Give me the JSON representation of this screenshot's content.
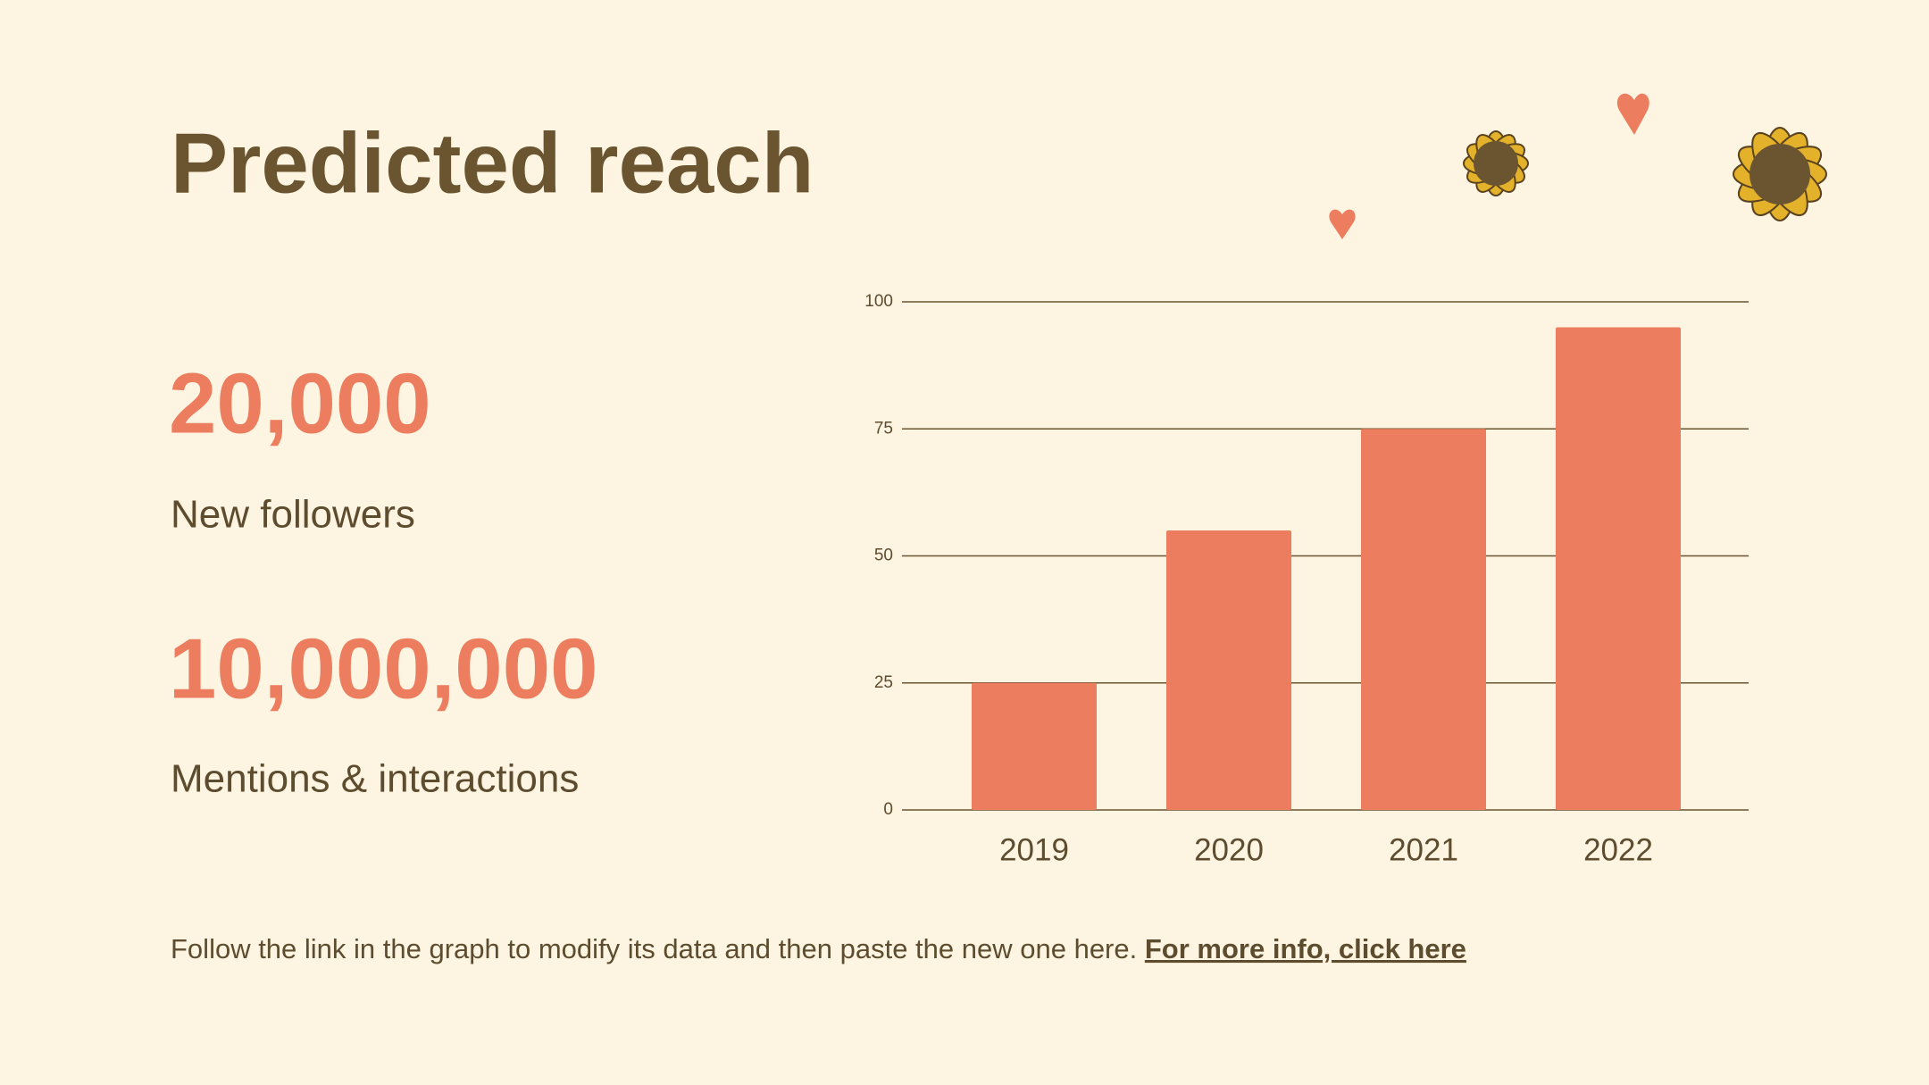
{
  "chart_data": {
    "type": "bar",
    "title": "Predicted reach",
    "categories": [
      "2019",
      "2020",
      "2021",
      "2022"
    ],
    "values": [
      25,
      55,
      75,
      95
    ],
    "color": "#ec7d5f",
    "ylim": [
      0,
      100
    ],
    "yticks": [
      0,
      25,
      50,
      75,
      100
    ],
    "grid": true
  },
  "stats": [
    {
      "number": "20,000",
      "label": "New followers"
    },
    {
      "number": "10,000,000",
      "label": "Mentions & interactions"
    }
  ],
  "footer": {
    "text": "Follow the link in the graph to modify its data and then paste the new one here.",
    "link": "For more info, click here"
  }
}
